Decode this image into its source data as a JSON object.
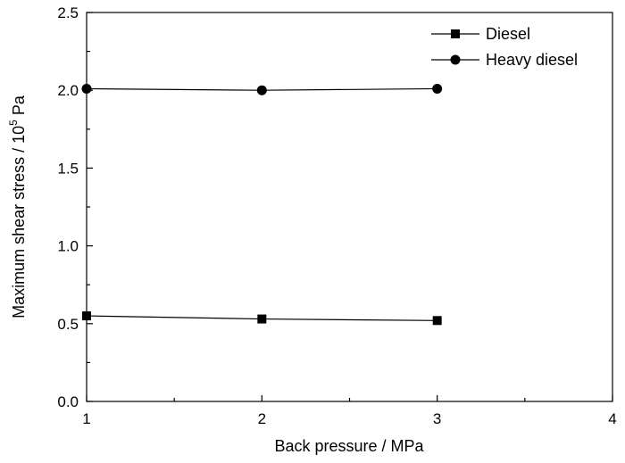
{
  "chart_data": {
    "type": "line",
    "xlabel": "Back pressure / MPa",
    "ylabel_main": "Maximum shear stress / 10",
    "ylabel_sup": "5",
    "ylabel_unit": " Pa",
    "xlim": [
      1,
      4
    ],
    "ylim": [
      0,
      2.5
    ],
    "xticks": [
      "1",
      "2",
      "3",
      "4"
    ],
    "yticks": [
      "0.0",
      "0.5",
      "1.0",
      "1.5",
      "2.0",
      "2.5"
    ],
    "grid": false,
    "legend_position": "top-right",
    "series": [
      {
        "name": "Diesel",
        "marker": "square",
        "x": [
          1,
          2,
          3
        ],
        "y": [
          0.55,
          0.53,
          0.52
        ],
        "color": "#000000"
      },
      {
        "name": "Heavy diesel",
        "marker": "circle",
        "x": [
          1,
          2,
          3
        ],
        "y": [
          2.01,
          2.0,
          2.01
        ],
        "color": "#000000"
      }
    ]
  }
}
